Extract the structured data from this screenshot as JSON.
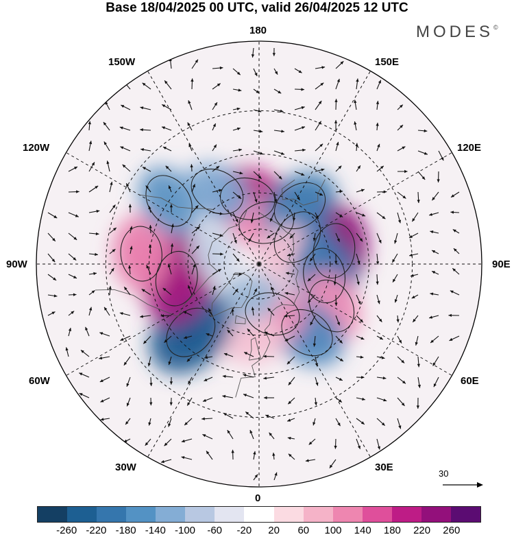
{
  "title": "Base 18/04/2025 00 UTC, valid 26/04/2025 12 UTC",
  "logo": "MODES",
  "logo_mark": "©",
  "map": {
    "projection": "north-polar-stereographic",
    "longitude_labels": {
      "top": "180",
      "bottom": "0",
      "left": "90W",
      "right": "90E",
      "l150": "150W",
      "l120": "120W",
      "l60": "60W",
      "l30": "30W",
      "r150": "150E",
      "r120": "120E",
      "r60": "60E",
      "r30": "30E"
    },
    "anomaly_centers": [
      {
        "lon": -170,
        "lat": 62,
        "value": 180,
        "color": "#b2127e"
      },
      {
        "lon": 170,
        "lat": 72,
        "value": 100,
        "color": "#ee8fb8"
      },
      {
        "lon": 145,
        "lat": 60,
        "value": -160,
        "color": "#3d7ab0"
      },
      {
        "lon": 135,
        "lat": 70,
        "value": -60,
        "color": "#9db8d6"
      },
      {
        "lon": 100,
        "lat": 58,
        "value": 220,
        "color": "#8a1076"
      },
      {
        "lon": 125,
        "lat": 70,
        "value": -140,
        "color": "#3d7ab0"
      },
      {
        "lon": 110,
        "lat": 78,
        "value": 60,
        "color": "#f4c2d4"
      },
      {
        "lon": 80,
        "lat": 62,
        "value": -180,
        "color": "#3d7ab0"
      },
      {
        "lon": 60,
        "lat": 55,
        "value": 120,
        "color": "#ee8fb8"
      },
      {
        "lon": 35,
        "lat": 55,
        "value": -160,
        "color": "#4f87bc"
      },
      {
        "lon": 15,
        "lat": 68,
        "value": 100,
        "color": "#ee8fb8"
      },
      {
        "lon": -5,
        "lat": 58,
        "value": 80,
        "color": "#f4c2d4"
      },
      {
        "lon": -15,
        "lat": 75,
        "value": -60,
        "color": "#9db8d6"
      },
      {
        "lon": -45,
        "lat": 50,
        "value": -240,
        "color": "#1f5a90"
      },
      {
        "lon": -80,
        "lat": 55,
        "value": 240,
        "color": "#a3157f"
      },
      {
        "lon": -95,
        "lat": 42,
        "value": 140,
        "color": "#e97fae"
      },
      {
        "lon": -125,
        "lat": 45,
        "value": -120,
        "color": "#5f95c4"
      },
      {
        "lon": -150,
        "lat": 55,
        "value": -100,
        "color": "#7ea7d0"
      },
      {
        "lon": -105,
        "lat": 70,
        "value": -40,
        "color": "#c6d3e6"
      }
    ]
  },
  "colorbar": {
    "colors": [
      "#143f63",
      "#1d5f92",
      "#3576ad",
      "#5392c4",
      "#84add5",
      "#b8c8e2",
      "#e3e5f1",
      "#ffffff",
      "#fbdbe2",
      "#f5b3c8",
      "#ee86b0",
      "#df4f9b",
      "#be1c86",
      "#93107b",
      "#5b0c72"
    ],
    "ticks": [
      "-260",
      "-220",
      "-180",
      "-140",
      "-100",
      "-60",
      "-20",
      "20",
      "60",
      "100",
      "140",
      "180",
      "220",
      "260"
    ]
  },
  "vector_reference": {
    "label": "30"
  }
}
